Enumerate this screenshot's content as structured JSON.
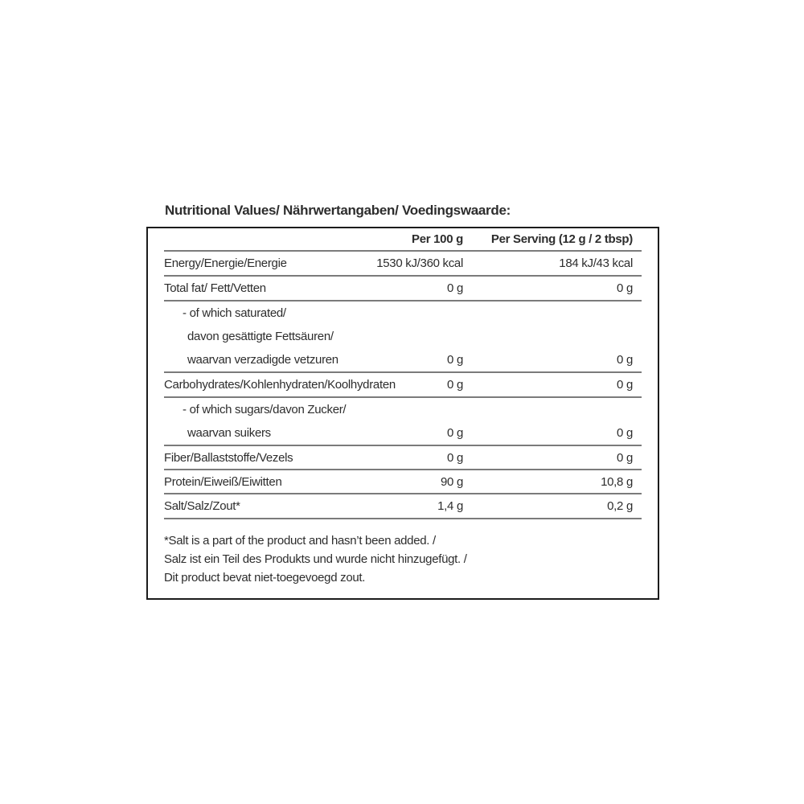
{
  "title": "Nutritional Values/ Nährwertangaben/ Voedingswaarde:",
  "table": {
    "col_headers": [
      "Per 100 g",
      "Per Serving (12 g / 2 tbsp)"
    ],
    "rows": [
      {
        "label": "Energy/Energie/Energie",
        "per100": "1530 kJ/360 kcal",
        "serving": "184 kJ/43 kcal"
      },
      {
        "label": "Total fat/ Fett/Vetten",
        "per100": "0 g",
        "serving": "0 g"
      },
      {
        "label_lines": [
          "- of which saturated/",
          "davon gesättigte Fettsäuren/",
          "waarvan verzadigde vetzuren"
        ],
        "per100": "0 g",
        "serving": "0 g"
      },
      {
        "label": "Carbohydrates/Kohlenhydraten/Koolhydraten",
        "per100": "0 g",
        "serving": "0 g"
      },
      {
        "label_lines": [
          "- of which sugars/davon Zucker/",
          "waarvan suikers"
        ],
        "per100": "0 g",
        "serving": "0 g"
      },
      {
        "label": "Fiber/Ballaststoffe/Vezels",
        "per100": "0 g",
        "serving": "0 g"
      },
      {
        "label": "Protein/Eiweiß/Eiwitten",
        "per100": "90 g",
        "serving": "10,8 g"
      },
      {
        "label": "Salt/Salz/Zout*",
        "per100": "1,4 g",
        "serving": "0,2 g"
      }
    ],
    "footnote_lines": [
      "*Salt is a part of the product and hasn’t been added. /",
      "Salz ist ein Teil des Produkts und wurde nicht hinzugefügt. /",
      "Dit product bevat niet-toegevoegd zout."
    ]
  },
  "colors": {
    "text": "#2d2d2d",
    "rule": "#7b7b7b",
    "border": "#1c1c1c",
    "background": "#ffffff"
  }
}
